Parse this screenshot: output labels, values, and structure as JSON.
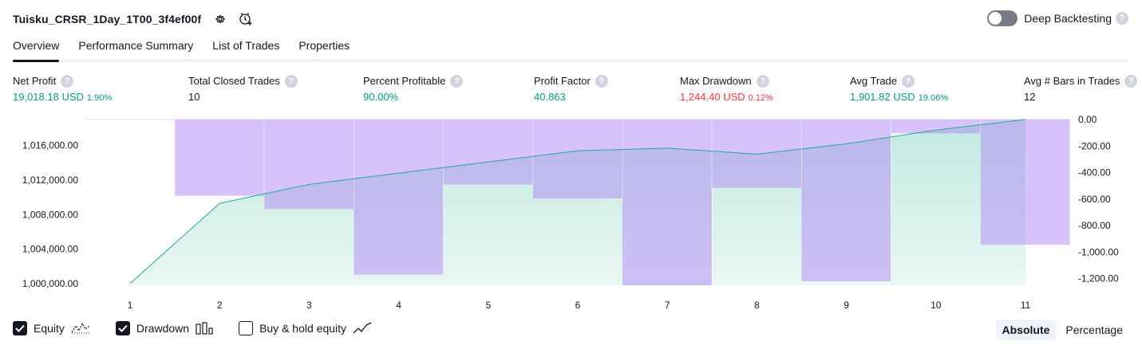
{
  "header": {
    "strategy_name": "Tuisku_CRSR_1Day_1T00_3f4ef00f",
    "deep_backtesting_label": "Deep Backtesting",
    "deep_backtesting_enabled": false
  },
  "tabs": [
    {
      "label": "Overview",
      "active": true
    },
    {
      "label": "Performance Summary",
      "active": false
    },
    {
      "label": "List of Trades",
      "active": false
    },
    {
      "label": "Properties",
      "active": false
    }
  ],
  "stats": {
    "net_profit": {
      "label": "Net Profit",
      "value": "19,018.18 USD",
      "sub": "1.90%"
    },
    "total_closed_trades": {
      "label": "Total Closed Trades",
      "value": "10"
    },
    "percent_profitable": {
      "label": "Percent Profitable",
      "value": "90.00%"
    },
    "profit_factor": {
      "label": "Profit Factor",
      "value": "40.863"
    },
    "max_drawdown": {
      "label": "Max Drawdown",
      "value": "1,244.40 USD",
      "sub": "0.12%"
    },
    "avg_trade": {
      "label": "Avg Trade",
      "value": "1,901.82 USD",
      "sub": "19.06%"
    },
    "avg_bars": {
      "label": "Avg # Bars in Trades",
      "value": "12"
    }
  },
  "help_glyph": "?",
  "chart_data": {
    "type": "line",
    "x": [
      1,
      2,
      3,
      4,
      5,
      6,
      7,
      8,
      9,
      10,
      11
    ],
    "xlim": [
      1,
      11
    ],
    "series": [
      {
        "name": "Equity",
        "values": [
          1000000,
          1009300,
          1011500,
          1012800,
          1014100,
          1015400,
          1015700,
          1015000,
          1016200,
          1017800,
          1019018.18
        ]
      },
      {
        "name": "Drawdown",
        "values": [
          0,
          -575,
          -675,
          -1170,
          -490,
          -595,
          -1250,
          -515,
          -1220,
          -105,
          -945
        ]
      }
    ],
    "y_left": {
      "ticks": [
        "1,000,000.00",
        "1,004,000.00",
        "1,008,000.00",
        "1,012,000.00",
        "1,016,000.00"
      ],
      "tick_values": [
        1000000,
        1004000,
        1008000,
        1012000,
        1016000
      ],
      "ylim": [
        999800,
        1019018.18
      ]
    },
    "y_right": {
      "ticks": [
        "0.00",
        "-200.00",
        "-400.00",
        "-600.00",
        "-800.00",
        "-1,000.00",
        "-1,200.00"
      ],
      "tick_values": [
        0,
        -200,
        -400,
        -600,
        -800,
        -1000,
        -1200
      ],
      "ylim": [
        -1250,
        0
      ]
    },
    "colors": {
      "equity_line": "#22ab94",
      "equity_fill": "#d5f0ea",
      "drawdown_fill": "#b28cf4",
      "grid": "#f0f3fa"
    }
  },
  "legend": [
    {
      "label": "Equity",
      "checked": true,
      "icon": "equity-line-icon"
    },
    {
      "label": "Drawdown",
      "checked": true,
      "icon": "drawdown-bars-icon"
    },
    {
      "label": "Buy & hold equity",
      "checked": false,
      "icon": "buy-hold-line-icon"
    }
  ],
  "modes": [
    {
      "label": "Absolute",
      "active": true
    },
    {
      "label": "Percentage",
      "active": false
    }
  ]
}
